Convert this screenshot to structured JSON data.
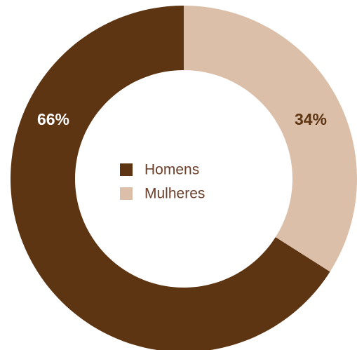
{
  "chart_data": {
    "type": "donut",
    "categories": [
      "Homens",
      "Mulheres"
    ],
    "values": [
      66,
      34
    ],
    "value_labels": [
      "66%",
      "34%"
    ],
    "colors": [
      "#5e3512",
      "#dbbfa8"
    ],
    "legend": "center"
  }
}
